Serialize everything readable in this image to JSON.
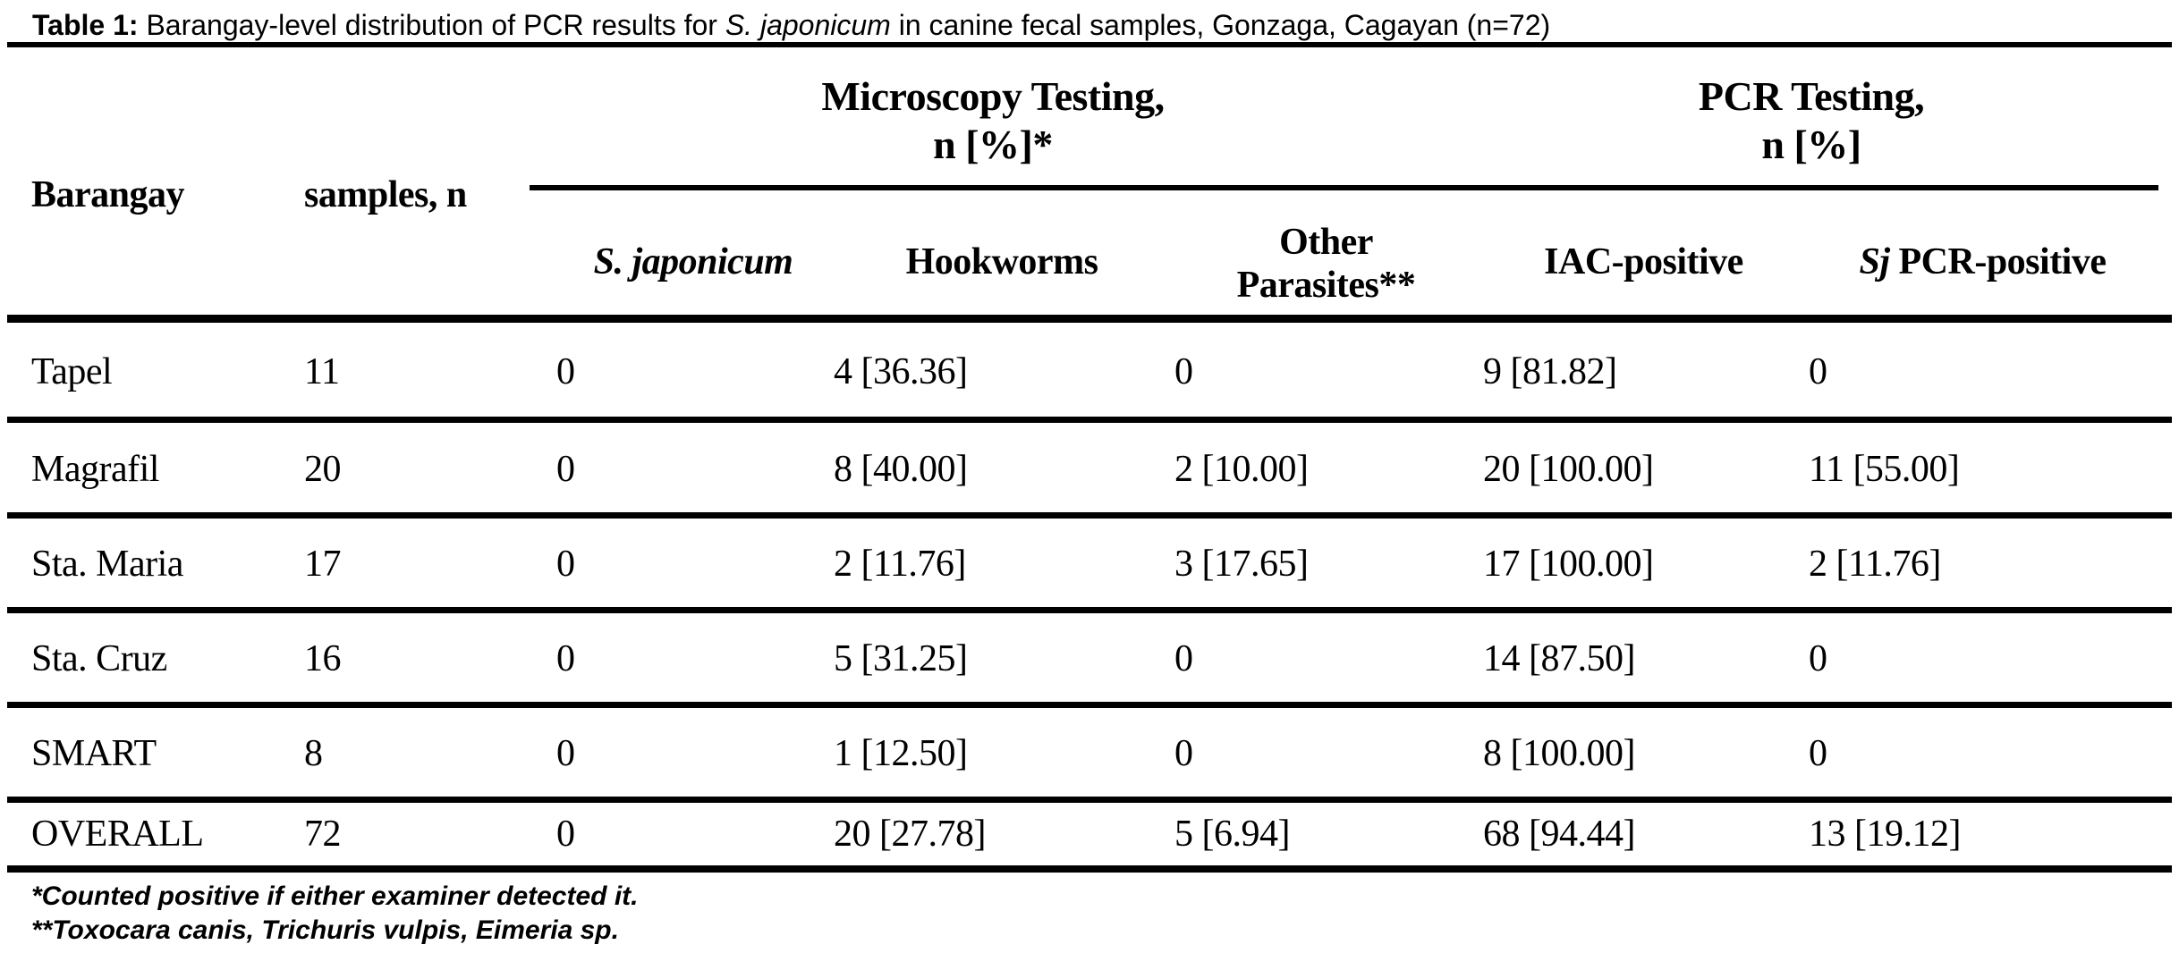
{
  "title": {
    "parts": [
      {
        "text": "Table 1:"
      },
      {
        "text": " Barangay-level distribution of PCR results for "
      },
      {
        "text": "S. japonicum"
      },
      {
        "text": " in canine fecal samples, Gonzaga, Cagayan (n=72)"
      }
    ]
  },
  "header": {
    "barangay": "Barangay",
    "samples": "samples, n",
    "groups": {
      "microscopy": {
        "line1": "Microscopy Testing,",
        "line2": "n [%]*"
      },
      "pcr": {
        "line1": "PCR Testing,",
        "line2": "n [%]"
      }
    },
    "columns": {
      "sjaponicum": "S. japonicum",
      "hookworms": "Hookworms",
      "other_line1": "Other",
      "other_line2": "Parasites**",
      "iac": "IAC-positive",
      "sj_italic": "Sj",
      "sj_rest": " PCR-positive"
    }
  },
  "rows": [
    {
      "barangay": "Tapel",
      "samples": "11",
      "sjaponicum": "0",
      "hookworms": "4 [36.36]",
      "other": "0",
      "iac": "9 [81.82]",
      "sj_pcr": "0"
    },
    {
      "barangay": "Magrafil",
      "samples": "20",
      "sjaponicum": "0",
      "hookworms": "8 [40.00]",
      "other": "2 [10.00]",
      "iac": "20 [100.00]",
      "sj_pcr": "11 [55.00]"
    },
    {
      "barangay": "Sta. Maria",
      "samples": "17",
      "sjaponicum": "0",
      "hookworms": "2 [11.76]",
      "other": "3 [17.65]",
      "iac": "17 [100.00]",
      "sj_pcr": "2 [11.76]"
    },
    {
      "barangay": "Sta. Cruz",
      "samples": "16",
      "sjaponicum": "0",
      "hookworms": "5 [31.25]",
      "other": "0",
      "iac": "14 [87.50]",
      "sj_pcr": "0"
    },
    {
      "barangay": "SMART",
      "samples": "8",
      "sjaponicum": "0",
      "hookworms": "1 [12.50]",
      "other": "0",
      "iac": "8 [100.00]",
      "sj_pcr": "0"
    },
    {
      "barangay": "OVERALL",
      "samples": "72",
      "sjaponicum": "0",
      "hookworms": "20 [27.78]",
      "other": "5 [6.94]",
      "iac": "68 [94.44]",
      "sj_pcr": "13 [19.12]"
    }
  ],
  "footnotes": {
    "line1": "*Counted positive if either examiner detected it.",
    "line2": "**Toxocara canis, Trichuris vulpis, Eimeria sp."
  }
}
